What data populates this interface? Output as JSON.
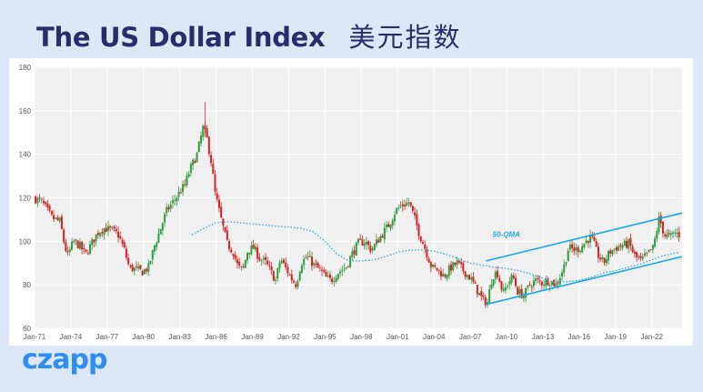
{
  "header": {
    "title_en": "The US Dollar Index",
    "title_cn": "美元指数"
  },
  "brand": {
    "logo_text": "czapp"
  },
  "colors": {
    "up": "#2e9e3e",
    "down": "#d42222",
    "moving_average": "#2aa7e6",
    "channel": "#14a8e8",
    "plot_bg": "#f0f0f0",
    "title": "#262f6e",
    "logo": "#2f8df3"
  },
  "chart_data": {
    "type": "candlestick",
    "title": "The US Dollar Index",
    "xlabel": "",
    "ylabel": "",
    "ylim": [
      60,
      180
    ],
    "yticks": [
      60,
      80,
      100,
      120,
      140,
      160,
      180
    ],
    "xlim": [
      1971.0,
      2024.5
    ],
    "xticks": [
      "Jan-71",
      "Jan-74",
      "Jan-77",
      "Jan-80",
      "Jan-83",
      "Jan-86",
      "Jan-89",
      "Jan-92",
      "Jan-95",
      "Jan-98",
      "Jan-01",
      "Jan-04",
      "Jan-07",
      "Jan-10",
      "Jan-13",
      "Jan-16",
      "Jan-19",
      "Jan-22"
    ],
    "grid": true,
    "annotation": {
      "text": "50-QMA",
      "x": 2010.5,
      "y": 102
    },
    "price_path": [
      [
        1971.0,
        120
      ],
      [
        1971.7,
        118
      ],
      [
        1972.5,
        111
      ],
      [
        1973.2,
        109
      ],
      [
        1973.5,
        100
      ],
      [
        1973.8,
        93
      ],
      [
        1974.3,
        100
      ],
      [
        1974.8,
        98
      ],
      [
        1975.3,
        94
      ],
      [
        1975.8,
        99
      ],
      [
        1976.3,
        104
      ],
      [
        1976.8,
        106
      ],
      [
        1977.5,
        105
      ],
      [
        1978.0,
        103
      ],
      [
        1978.5,
        96
      ],
      [
        1978.9,
        88
      ],
      [
        1979.5,
        87
      ],
      [
        1980.0,
        86
      ],
      [
        1980.5,
        88
      ],
      [
        1981.0,
        98
      ],
      [
        1981.5,
        106
      ],
      [
        1982.0,
        114
      ],
      [
        1982.5,
        118
      ],
      [
        1983.0,
        122
      ],
      [
        1983.5,
        126
      ],
      [
        1984.0,
        134
      ],
      [
        1984.5,
        140
      ],
      [
        1985.0,
        152
      ],
      [
        1985.3,
        148
      ],
      [
        1985.7,
        136
      ],
      [
        1986.0,
        122
      ],
      [
        1986.5,
        110
      ],
      [
        1987.0,
        99
      ],
      [
        1987.5,
        95
      ],
      [
        1987.9,
        88
      ],
      [
        1988.3,
        87
      ],
      [
        1988.7,
        96
      ],
      [
        1989.2,
        97
      ],
      [
        1989.7,
        92
      ],
      [
        1990.2,
        90
      ],
      [
        1990.6,
        86
      ],
      [
        1991.0,
        82
      ],
      [
        1991.4,
        92
      ],
      [
        1991.8,
        88
      ],
      [
        1992.3,
        83
      ],
      [
        1992.7,
        80
      ],
      [
        1993.1,
        90
      ],
      [
        1993.6,
        93
      ],
      [
        1994.2,
        89
      ],
      [
        1994.8,
        86
      ],
      [
        1995.2,
        83
      ],
      [
        1995.6,
        82
      ],
      [
        1996.2,
        86
      ],
      [
        1996.8,
        88
      ],
      [
        1997.3,
        94
      ],
      [
        1997.8,
        99
      ],
      [
        1998.4,
        100
      ],
      [
        1998.9,
        96
      ],
      [
        1999.4,
        100
      ],
      [
        1999.9,
        104
      ],
      [
        2000.4,
        108
      ],
      [
        2000.9,
        114
      ],
      [
        2001.3,
        116
      ],
      [
        2001.6,
        117
      ],
      [
        2002.0,
        118
      ],
      [
        2002.4,
        112
      ],
      [
        2002.9,
        103
      ],
      [
        2003.4,
        96
      ],
      [
        2003.9,
        88
      ],
      [
        2004.4,
        87
      ],
      [
        2004.9,
        84
      ],
      [
        2005.5,
        88
      ],
      [
        2006.0,
        90
      ],
      [
        2006.6,
        86
      ],
      [
        2007.1,
        83
      ],
      [
        2007.6,
        78
      ],
      [
        2008.1,
        73
      ],
      [
        2008.5,
        72
      ],
      [
        2008.9,
        84
      ],
      [
        2009.3,
        86
      ],
      [
        2009.8,
        76
      ],
      [
        2010.2,
        81
      ],
      [
        2010.6,
        84
      ],
      [
        2011.0,
        77
      ],
      [
        2011.5,
        75
      ],
      [
        2012.0,
        80
      ],
      [
        2012.5,
        82
      ],
      [
        2013.0,
        81
      ],
      [
        2013.6,
        82
      ],
      [
        2014.2,
        80
      ],
      [
        2014.8,
        88
      ],
      [
        2015.2,
        97
      ],
      [
        2015.7,
        96
      ],
      [
        2016.2,
        97
      ],
      [
        2016.8,
        101
      ],
      [
        2017.1,
        102
      ],
      [
        2017.6,
        94
      ],
      [
        2018.1,
        90
      ],
      [
        2018.6,
        95
      ],
      [
        2019.1,
        97
      ],
      [
        2019.6,
        98
      ],
      [
        2020.2,
        99
      ],
      [
        2020.7,
        93
      ],
      [
        2021.2,
        91
      ],
      [
        2021.7,
        94
      ],
      [
        2022.2,
        97
      ],
      [
        2022.7,
        111
      ],
      [
        2023.1,
        103
      ],
      [
        2023.6,
        102
      ],
      [
        2024.0,
        104
      ],
      [
        2024.3,
        103
      ]
    ],
    "series": [
      {
        "name": "",
        "style": "dotted-line",
        "x": [
          1984.0,
          1985.0,
          1986.0,
          1987.0,
          1988.0,
          1989.0,
          1990.0,
          1991.0,
          1992.0,
          1993.0,
          1994.0,
          1995.0,
          1996.0,
          1997.0,
          1998.0,
          1999.0,
          2000.0,
          2001.0,
          2002.0,
          2003.0,
          2004.0,
          2005.0,
          2006.0,
          2007.0,
          2008.0,
          2009.0,
          2010.0,
          2011.0,
          2012.0,
          2013.0,
          2014.0,
          2015.0,
          2016.0,
          2017.0,
          2018.0,
          2019.0,
          2020.0,
          2021.0,
          2022.0,
          2023.0,
          2024.3
        ],
        "values": [
          103,
          106,
          108.5,
          109,
          108.5,
          108,
          107.5,
          107,
          106.5,
          106,
          104.5,
          100,
          94,
          91,
          91,
          91.5,
          93,
          95,
          96,
          96,
          95.5,
          94,
          92,
          90,
          89,
          88,
          87.5,
          86.5,
          85,
          83,
          81,
          81.5,
          82,
          83.5,
          85.5,
          86.5,
          88,
          89.5,
          91.5,
          93.5,
          95
        ]
      },
      {
        "name": "",
        "style": "channel-line",
        "x": [
          2008.3,
          2024.5
        ],
        "values": [
          91,
          113
        ]
      },
      {
        "name": "",
        "style": "channel-line",
        "x": [
          2008.3,
          2024.5
        ],
        "values": [
          71,
          93
        ]
      }
    ]
  }
}
